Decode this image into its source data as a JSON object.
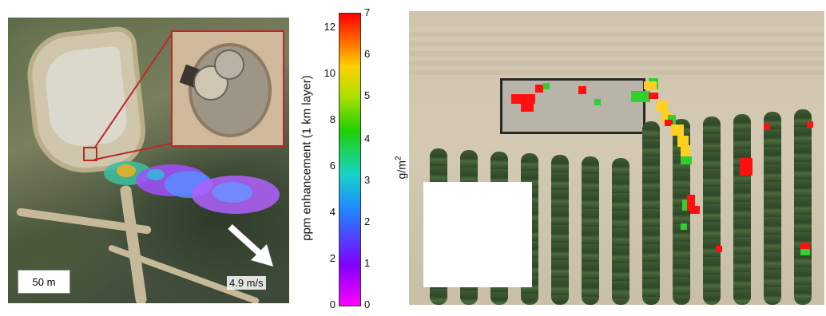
{
  "left_panel": {
    "scale_label": "50 m",
    "wind_label": "4.9 m/s"
  },
  "colorbar": {
    "left_axis_label": "ppm enhancement (1 km layer)",
    "right_axis_label": "g/m",
    "right_axis_exponent": "2",
    "left_ticks": [
      "12",
      "10",
      "8",
      "6",
      "4",
      "2",
      "0"
    ],
    "right_ticks": [
      "7",
      "6",
      "5",
      "4",
      "3",
      "2",
      "1",
      "0"
    ],
    "colors": {
      "min": "#ff00ff",
      "mid": "#20d000",
      "max": "#ff0000"
    }
  },
  "colors": {
    "marker": "#b82a2a",
    "plume_low": "#a050ff",
    "plume_high": "#ff3030"
  }
}
